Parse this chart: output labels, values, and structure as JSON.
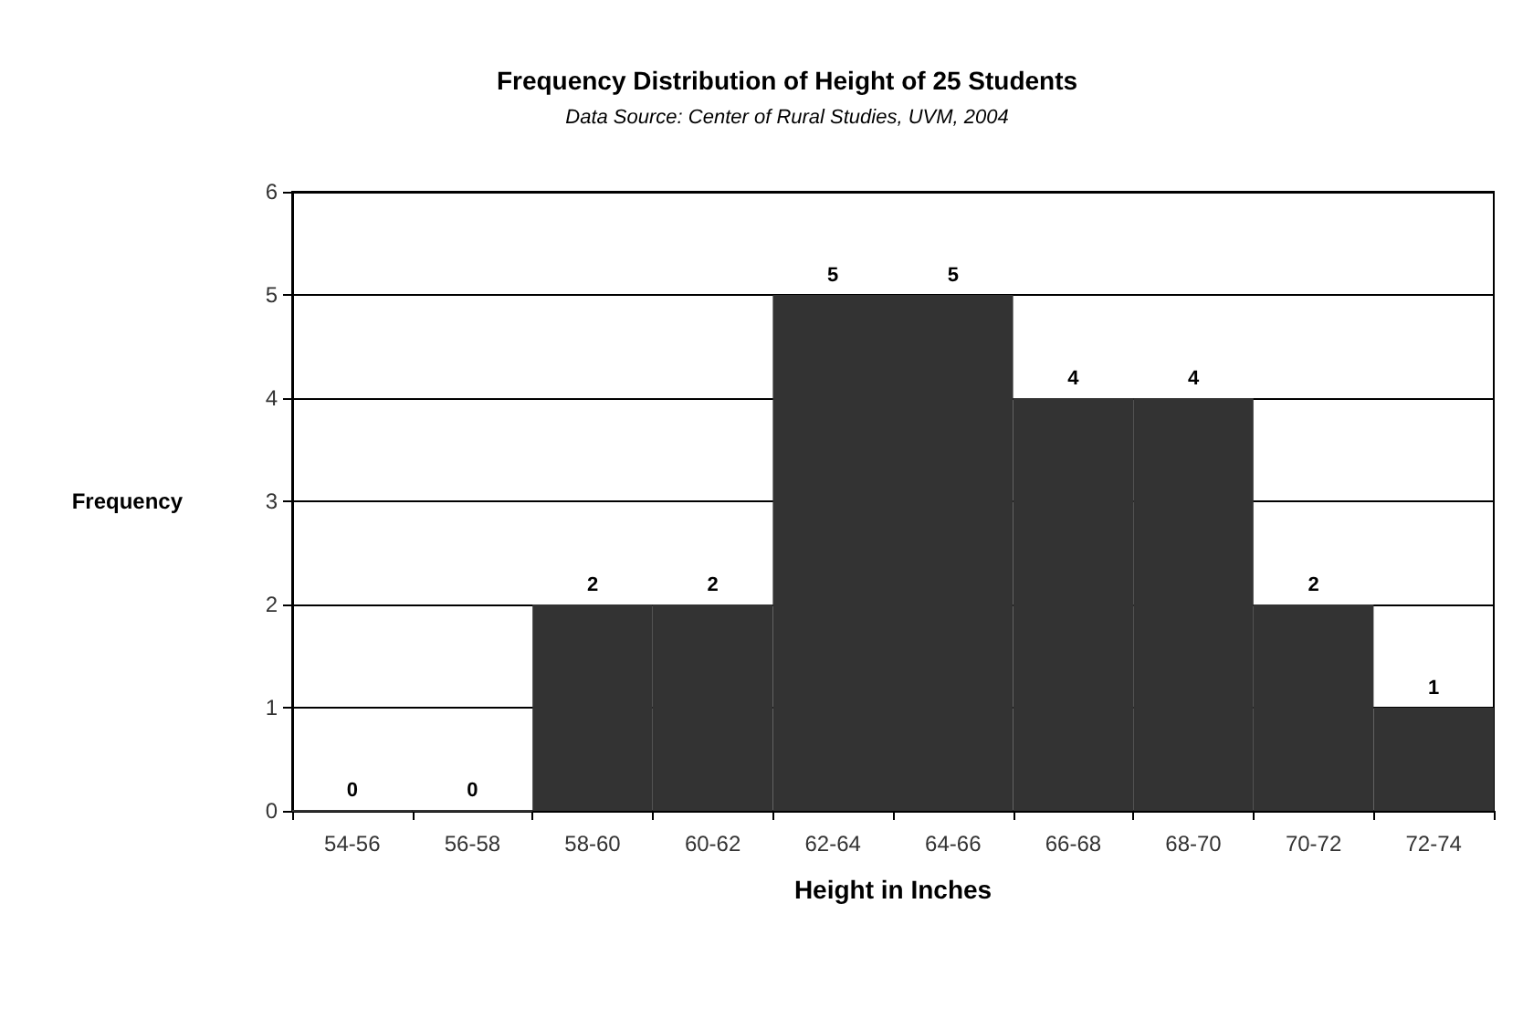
{
  "chart_data": {
    "type": "bar",
    "title": "Frequency Distribution of Height of 25 Students",
    "subtitle": "Data Source: Center of Rural Studies, UVM, 2004",
    "xlabel": "Height in Inches",
    "ylabel": "Frequency",
    "categories": [
      "54-56",
      "56-58",
      "58-60",
      "60-62",
      "62-64",
      "64-66",
      "66-68",
      "68-70",
      "70-72",
      "72-74"
    ],
    "values": [
      0,
      0,
      2,
      2,
      5,
      5,
      4,
      4,
      2,
      1
    ],
    "color": "#333333",
    "ylim": [
      0,
      6
    ],
    "yticks": [
      0,
      1,
      2,
      3,
      4,
      5,
      6
    ],
    "grid": "y",
    "data_labels": true
  }
}
